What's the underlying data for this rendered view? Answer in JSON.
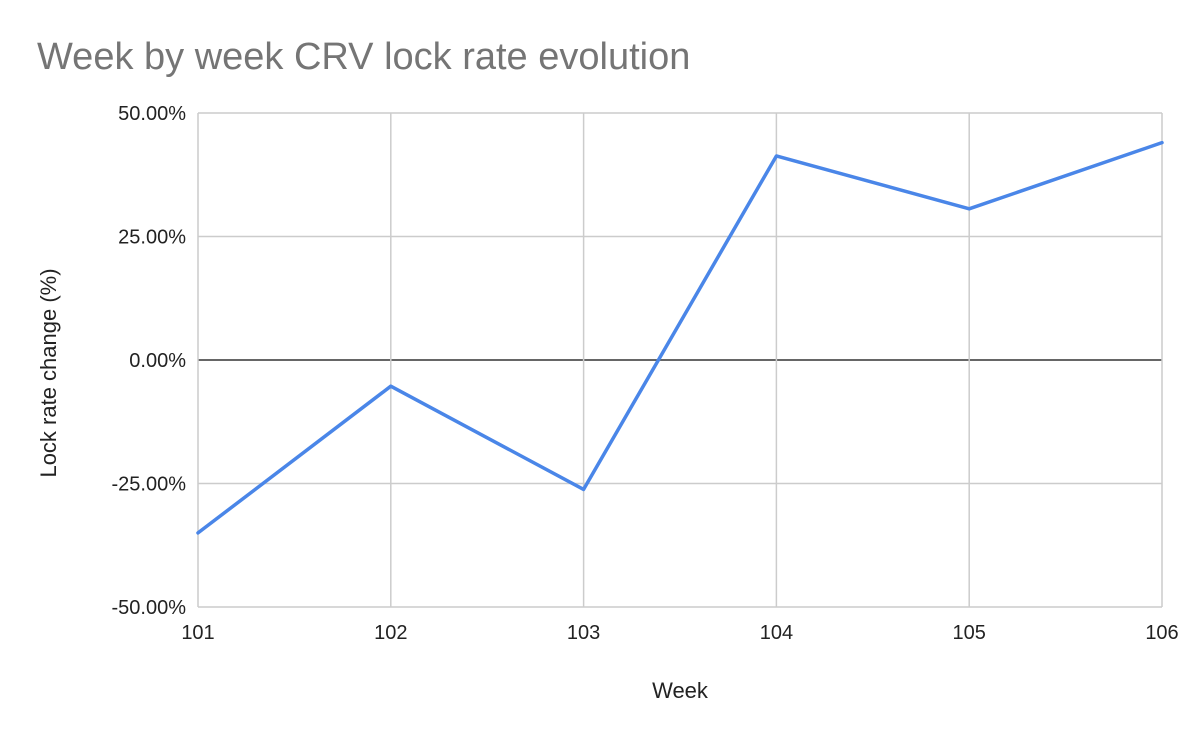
{
  "colors": {
    "series": "#4a86e8",
    "grid": "#cccccc",
    "zero_line": "#333333",
    "title": "#757575"
  },
  "chart_data": {
    "type": "line",
    "title": "Week by week CRV lock rate evolution",
    "xlabel": "Week",
    "ylabel": "Lock rate change (%)",
    "x": [
      101,
      102,
      103,
      104,
      105,
      106
    ],
    "x_tick_labels": [
      "101",
      "102",
      "103",
      "104",
      "105",
      "106"
    ],
    "y_tick_labels": [
      "50.00%",
      "25.00%",
      "0.00%",
      "-25.00%",
      "-50.00%"
    ],
    "y_ticks": [
      50,
      25,
      0,
      -25,
      -50
    ],
    "ylim": [
      -50,
      50
    ],
    "xlim": [
      101,
      106
    ],
    "grid": true,
    "legend": "none",
    "series": [
      {
        "values": [
          -35.0,
          -5.3,
          -26.2,
          41.3,
          30.6,
          44.0
        ]
      }
    ]
  }
}
